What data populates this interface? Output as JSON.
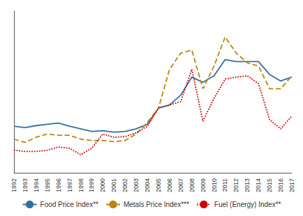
{
  "chart_data": {
    "type": "line",
    "categories": [
      "1992",
      "1993",
      "1994",
      "1995",
      "1996",
      "1997",
      "1998",
      "1999",
      "2000",
      "2001",
      "2002",
      "2003",
      "2004",
      "2005",
      "2006",
      "2007",
      "2008",
      "2009",
      "2010",
      "2011",
      "2012",
      "2013",
      "2014",
      "2015",
      "2016",
      "2017"
    ],
    "series": [
      {
        "name": "Food Price Index**",
        "color": "#2e6fa3",
        "line_style": "solid",
        "values": [
          72,
          70,
          73,
          75,
          77,
          72,
          68,
          64,
          65,
          63,
          64,
          68,
          75,
          100,
          105,
          120,
          148,
          140,
          150,
          175,
          172,
          172,
          172,
          152,
          142,
          148
        ]
      },
      {
        "name": "Metals Price Index***",
        "color": "#b8860b",
        "line_style": "dashed",
        "values": [
          52,
          47,
          55,
          60,
          58,
          58,
          52,
          50,
          50,
          48,
          50,
          60,
          78,
          100,
          160,
          185,
          190,
          130,
          165,
          210,
          185,
          170,
          165,
          130,
          130,
          150
        ]
      },
      {
        "name": "Fuel (Energy) Index**",
        "color": "#cc0000",
        "line_style": "dotted",
        "values": [
          35,
          33,
          33,
          35,
          40,
          38,
          28,
          38,
          60,
          55,
          56,
          62,
          72,
          100,
          105,
          110,
          160,
          80,
          115,
          145,
          148,
          150,
          138,
          82,
          68,
          88
        ]
      }
    ],
    "ylim": [
      0,
      250
    ],
    "yticks": [],
    "grid": false,
    "legend": "bottom",
    "tick_labels": "x"
  }
}
